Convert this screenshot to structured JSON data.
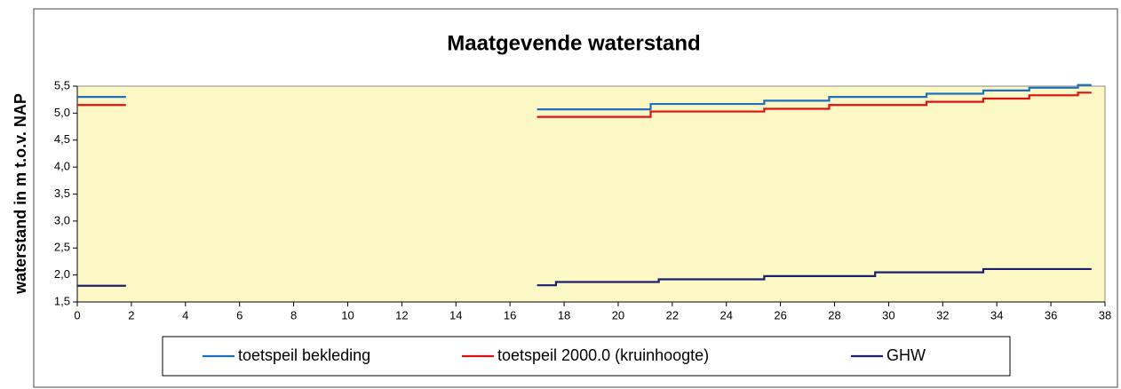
{
  "chart_data": {
    "type": "line",
    "title": "Maatgevende waterstand",
    "y_label": "waterstand in m t.o.v. NAP",
    "xlim": [
      0,
      38
    ],
    "xticks": [
      0,
      2,
      4,
      6,
      8,
      10,
      12,
      14,
      16,
      18,
      20,
      22,
      24,
      26,
      28,
      30,
      32,
      34,
      36,
      38
    ],
    "ylim": [
      1.5,
      5.5
    ],
    "yticks": [
      {
        "value": 1.5,
        "label": "1,5"
      },
      {
        "value": 2.0,
        "label": "2,0"
      },
      {
        "value": 2.5,
        "label": "2,5"
      },
      {
        "value": 3.0,
        "label": "3,0"
      },
      {
        "value": 3.5,
        "label": "3,5"
      },
      {
        "value": 4.0,
        "label": "4,0"
      },
      {
        "value": 4.5,
        "label": "4,5"
      },
      {
        "value": 5.0,
        "label": "5,0"
      },
      {
        "value": 5.5,
        "label": "5,5"
      }
    ],
    "legend": "bottom",
    "series": [
      {
        "name": "toetspeil bekleding",
        "color": "#1f6fc0",
        "x": [
          0,
          1.8,
          null,
          17,
          21.2,
          21.2,
          25.4,
          25.4,
          27.8,
          27.8,
          31.4,
          31.4,
          33.5,
          33.5,
          35.2,
          35.2,
          37,
          37,
          37.5
        ],
        "values": [
          5.3,
          5.3,
          null,
          5.07,
          5.07,
          5.17,
          5.17,
          5.23,
          5.23,
          5.3,
          5.3,
          5.36,
          5.36,
          5.42,
          5.42,
          5.47,
          5.47,
          5.52,
          5.52
        ]
      },
      {
        "name": "toetspeil 2000.0 (kruinhoogte)",
        "color": "#e01010",
        "x": [
          0,
          1.8,
          null,
          17,
          21.2,
          21.2,
          25.4,
          25.4,
          27.8,
          27.8,
          31.4,
          31.4,
          33.5,
          33.5,
          35.2,
          35.2,
          37,
          37,
          37.5
        ],
        "values": [
          5.15,
          5.15,
          null,
          4.93,
          4.93,
          5.03,
          5.03,
          5.08,
          5.08,
          5.15,
          5.15,
          5.21,
          5.21,
          5.27,
          5.27,
          5.33,
          5.33,
          5.38,
          5.38
        ]
      },
      {
        "name": "GHW",
        "color": "#1a1f6e",
        "x": [
          0,
          1.8,
          null,
          17,
          17.7,
          17.7,
          21.5,
          21.5,
          25.4,
          25.4,
          29.5,
          29.5,
          33.5,
          33.5,
          37.5
        ],
        "values": [
          1.8,
          1.8,
          null,
          1.81,
          1.81,
          1.87,
          1.87,
          1.92,
          1.92,
          1.98,
          1.98,
          2.05,
          2.05,
          2.11,
          2.11
        ]
      }
    ]
  }
}
